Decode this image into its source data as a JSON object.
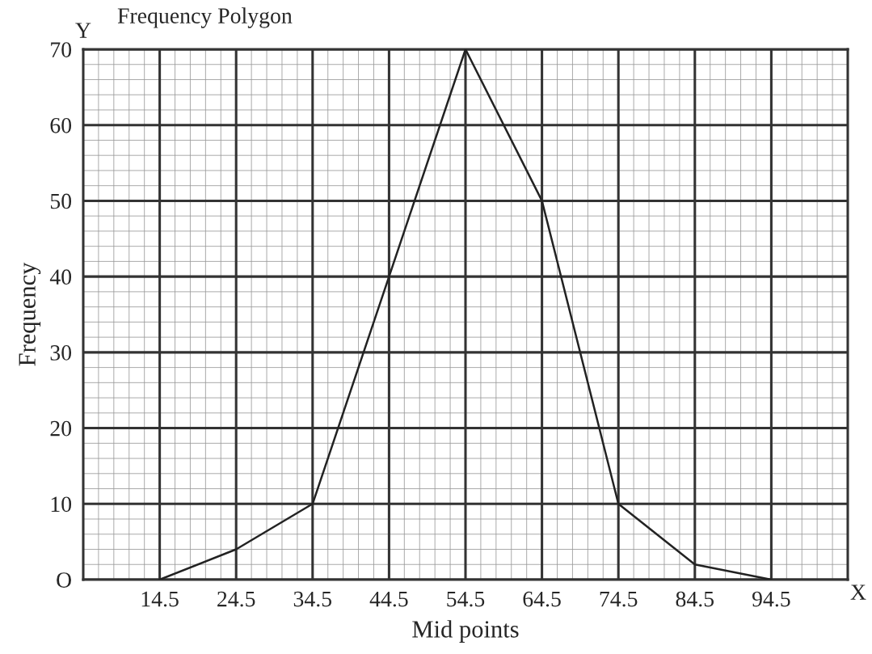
{
  "chart_data": {
    "type": "line",
    "title": "Frequency Polygon",
    "xlabel": "Mid points",
    "ylabel": "Frequency",
    "x": [
      14.5,
      24.5,
      34.5,
      44.5,
      54.5,
      64.5,
      74.5,
      84.5,
      94.5
    ],
    "series": [
      {
        "color": "#222222",
        "values": [
          0,
          4,
          10,
          40,
          70,
          50,
          10,
          2,
          0
        ]
      }
    ],
    "xlim": [
      4.5,
      104.5
    ],
    "xticks": [
      14.5,
      24.5,
      34.5,
      44.5,
      54.5,
      64.5,
      74.5,
      84.5,
      94.5
    ],
    "ylim": [
      0,
      70
    ],
    "yticks": [
      {
        "value": 0,
        "label": "O"
      },
      10,
      20,
      30,
      40,
      50,
      60,
      70
    ],
    "grid": true,
    "marker": "none",
    "line_style": "solid",
    "annotations": [
      "Y",
      "X"
    ]
  }
}
